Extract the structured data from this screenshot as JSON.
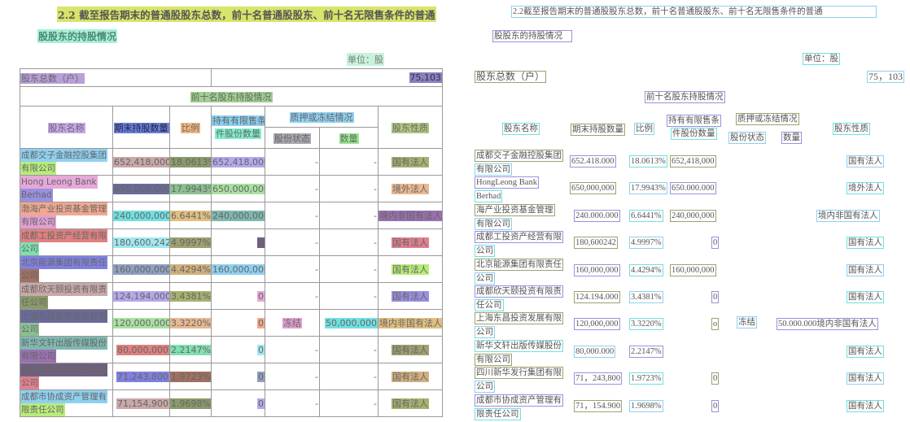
{
  "left": {
    "title": "2.2 截至报告期末的普通股股东总数，前十名普通股股东、前十名无限售条件的普通",
    "subtitle": "股股东的持股情况",
    "unit": "单位：股",
    "total_label": "股东总数（户）",
    "total_value": "75,103",
    "top10_title": "前十名股东持股情况",
    "headers": {
      "name": "股东名称",
      "qty": "期末持股数量",
      "ratio": "比例",
      "restricted_1": "持有有限售条",
      "restricted_2": "件股份数量",
      "pledge": "质押或冻结情况",
      "status": "股份状态",
      "pledge_qty": "数量",
      "nature": "股东性质"
    },
    "rows": [
      {
        "name": [
          "成都交子金融控股集团",
          "有限公司"
        ],
        "qty": "652,418,000",
        "ratio": "18.0613%",
        "restricted": "652,418,000",
        "status": "-",
        "pledge_qty": "-",
        "nature": "国有法人"
      },
      {
        "name": [
          "Hong Leong Bank",
          "Berhad"
        ],
        "qty": "650,000,000",
        "ratio": "17.9943%",
        "restricted": "650,000,000",
        "status": "-",
        "pledge_qty": "-",
        "nature": "境外法人"
      },
      {
        "name": [
          "渤海产业投资基金管理",
          "有限公司"
        ],
        "qty": "240,000,000",
        "ratio": "6.6441%",
        "restricted": "240,000,000",
        "status": "-",
        "pledge_qty": "-",
        "nature": "境内非国有法人"
      },
      {
        "name": [
          "成都工投资产经营有限",
          "公司"
        ],
        "qty": "180,600,242",
        "ratio": "4.9997%",
        "restricted": "0",
        "status": "-",
        "pledge_qty": "-",
        "nature": "国有法人"
      },
      {
        "name": [
          "北京能源集团有限责任",
          "公司"
        ],
        "qty": "160,000,000",
        "ratio": "4.4294%",
        "restricted": "160,000,000",
        "status": "-",
        "pledge_qty": "-",
        "nature": "国有法人"
      },
      {
        "name": [
          "成都欣天颐投资有限责",
          "任公司"
        ],
        "qty": "124,194,000",
        "ratio": "3.4381%",
        "restricted": "0",
        "status": "-",
        "pledge_qty": "-",
        "nature": "国有法人"
      },
      {
        "name": [
          "上海东昌投资发展有限",
          "公司"
        ],
        "qty": "120,000,000",
        "ratio": "3.3220%",
        "restricted": "0",
        "status": "冻结",
        "pledge_qty": "50,000,000",
        "nature": "境内非国有法人"
      },
      {
        "name": [
          "新华文轩出版传媒股份",
          "有限公司"
        ],
        "qty": "80,000,000",
        "ratio": "2.2147%",
        "restricted": "0",
        "status": "-",
        "pledge_qty": "-",
        "nature": "国有法人"
      },
      {
        "name": [
          "四川新华发行集团有限",
          "公司"
        ],
        "qty": "71,243,800",
        "ratio": "1.9723%",
        "restricted": "0",
        "status": "-",
        "pledge_qty": "-",
        "nature": "国有法人"
      },
      {
        "name": [
          "成都市协成资产管理有",
          "限责任公司"
        ],
        "qty": "71,154,900",
        "ratio": "1.9698%",
        "restricted": "0",
        "status": "-",
        "pledge_qty": "-",
        "nature": "国有法人"
      }
    ]
  },
  "ocr": {
    "title": "2.2截至报告期末的普通股股东总数，前十名普通股股东、前十名无限售条件的普通",
    "subtitle": "股股东的持股情况",
    "unit": "单位：股",
    "total_label": "股东总数（户）",
    "total_value": "75，103",
    "top10_title": "前十名股东持股情况",
    "headers": [
      "股东名称",
      "期末持股数量",
      "比例",
      "持有有限售条",
      "件股份数量",
      "质押或冻结情况",
      "股份状态",
      "数量",
      "股东性质"
    ],
    "rows": [
      {
        "name": [
          "成都交子金融控股集团",
          "有限公司"
        ],
        "qty": "652.418.000",
        "ratio": "18.0613%",
        "restricted": "652,418,000",
        "nature": "国有法人"
      },
      {
        "name": [
          "HongLeong Bank",
          "Berhad"
        ],
        "qty": "650,000,000",
        "ratio": "17.9943%",
        "restricted": "650.000.000",
        "nature": "境外法人"
      },
      {
        "name": [
          "海产业投资基金管理",
          "有限公司"
        ],
        "qty": "240.000.000",
        "ratio": "6.6441%",
        "restricted": "240,000,000",
        "nature": "境内非国有法人"
      },
      {
        "name": [
          "成都工投资产经营有限",
          "公司"
        ],
        "qty": "180,600242",
        "ratio": "4.9997%",
        "restricted": "0",
        "nature": "国有法人"
      },
      {
        "name": [
          "北京能源集团有限责任",
          "公司"
        ],
        "qty": "160,000,000",
        "ratio": "4.4294%",
        "restricted": "160,000,000",
        "nature": "国有法人"
      },
      {
        "name": [
          "成都欣天颐投资有限责",
          "任公司"
        ],
        "qty": "124.194.000",
        "ratio": "3.4381%",
        "restricted": "0",
        "nature": "国有法人"
      },
      {
        "name": [
          "上海东昌投资发展有限",
          "公司"
        ],
        "qty": "120,000,000",
        "ratio": "3.3220%",
        "restricted": "o",
        "status": "冻结",
        "nature": "50.000.000境内非国有法人"
      },
      {
        "name": [
          "新华文轩出版传媒股份",
          "有限公司"
        ],
        "qty": "80,000.000",
        "ratio": "2.2147%",
        "nature": "国有法人"
      },
      {
        "name": [
          "四川新华发行集团有限",
          "公司"
        ],
        "qty": "71，243,800",
        "ratio": "1.9723%",
        "restricted": "0",
        "nature": "国有法人"
      },
      {
        "name": [
          "成都市协成资产管理有",
          "限责任公司"
        ],
        "qty": "71，154.900",
        "ratio": "1.9698%",
        "restricted": "0",
        "nature": "国有法人"
      }
    ]
  },
  "highlight_palette": [
    "#8fd0f0",
    "#b8ec7a",
    "#c9a8a8",
    "#8a9a6a",
    "#b6a8ea",
    "#a8b070",
    "#e6a8d8",
    "#9a90e0",
    "#6a6a9a",
    "#8ac090",
    "#a8e0a0",
    "#e8b890",
    "#f0a890",
    "#e0a0d0",
    "#70e0e0",
    "#e0c080",
    "#7fb8b0",
    "#9a70b0",
    "#e08080",
    "#80e0b0",
    "#a0e8f0",
    "#a0a070",
    "#706080",
    "#e08090",
    "#8080e0",
    "#a07060",
    "#90a0c0",
    "#d0b080"
  ]
}
